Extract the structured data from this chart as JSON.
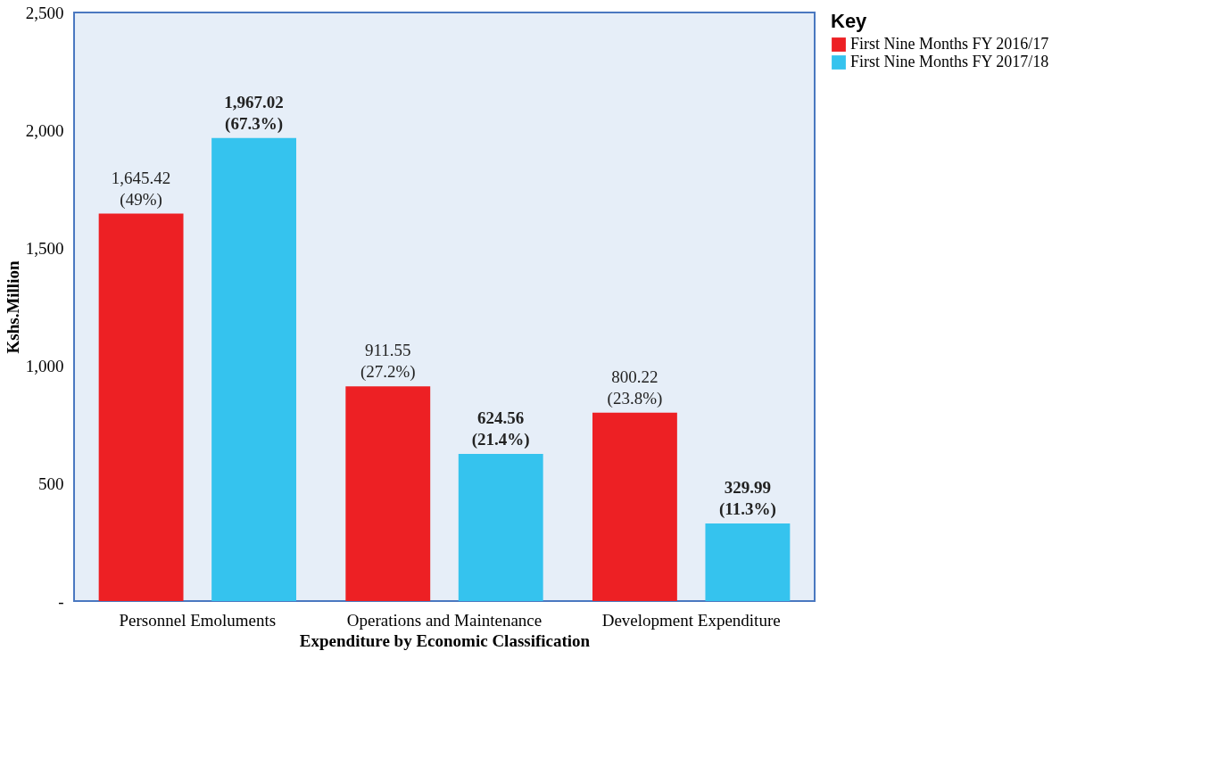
{
  "chart_data": {
    "type": "bar",
    "xlabel": "Expenditure by Economic Classification",
    "ylabel": "Kshs.Million",
    "legend_title": "Key",
    "categories": [
      "Personnel Emoluments",
      "Operations and Maintenance",
      "Development Expenditure"
    ],
    "series": [
      {
        "name": "First Nine Months FY 2016/17",
        "color": "#ed2024",
        "values": [
          1645.42,
          911.55,
          800.22
        ],
        "value_labels": [
          "1,645.42\n(49%)",
          "911.55\n(27.2%)",
          "800.22\n(23.8%)"
        ]
      },
      {
        "name": "First Nine Months FY 2017/18",
        "color": "#35c3ee",
        "values": [
          1967.02,
          624.56,
          329.99
        ],
        "value_labels": [
          "1,967.02\n(67.3%)",
          "624.56\n(21.4%)",
          "329.99\n(11.3%)"
        ]
      }
    ],
    "ylim": [
      0,
      2500
    ],
    "yticks": [
      {
        "value": 0,
        "label": "-"
      },
      500,
      {
        "value": 1000,
        "label": "1,000"
      },
      {
        "value": 1500,
        "label": "1,500"
      },
      {
        "value": 2000,
        "label": "2,000"
      },
      {
        "value": 2500,
        "label": "2,500"
      }
    ],
    "grid": false,
    "legend": "right"
  }
}
